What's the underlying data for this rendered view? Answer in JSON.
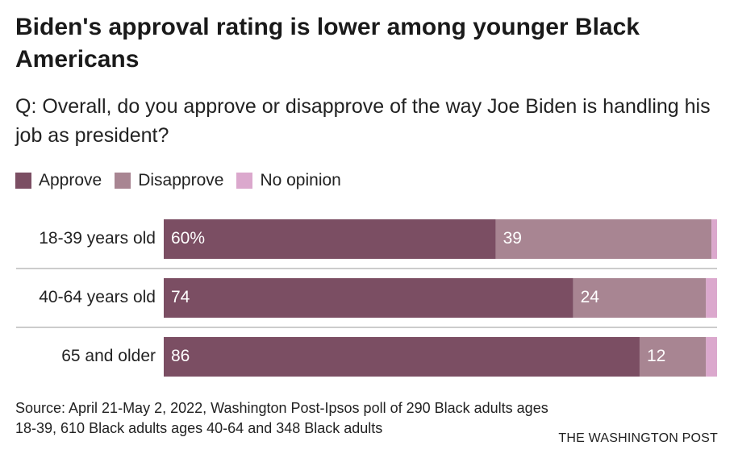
{
  "title": "Biden's approval rating is lower among younger Black Americans",
  "subtitle": "Q: Overall, do you approve or disapprove of the way Joe Biden is handling his job as president?",
  "source": "Source: April 21-May 2, 2022, Washington Post-Ipsos poll of 290 Black adults ages 18-39, 610 Black adults ages 40-64 and 348 Black adults",
  "credit": "THE WASHINGTON POST",
  "colors": {
    "approve": "#7b4e63",
    "disapprove": "#a88592",
    "no_opinion": "#dba8cd",
    "divider": "#cccccc"
  },
  "chart_data": {
    "type": "bar",
    "orientation": "horizontal",
    "stacked": true,
    "categories": [
      "18-39 years old",
      "40-64 years old",
      "65 and older"
    ],
    "series": [
      {
        "name": "Approve",
        "values": [
          60,
          74,
          86
        ],
        "labels": [
          "60%",
          "74",
          "86"
        ]
      },
      {
        "name": "Disapprove",
        "values": [
          39,
          24,
          12
        ],
        "labels": [
          "39",
          "24",
          "12"
        ]
      },
      {
        "name": "No opinion",
        "values": [
          1,
          2,
          2
        ],
        "labels": [
          "",
          "",
          ""
        ]
      }
    ],
    "xlim": [
      0,
      100
    ],
    "legend": "top-left",
    "grid": false
  }
}
